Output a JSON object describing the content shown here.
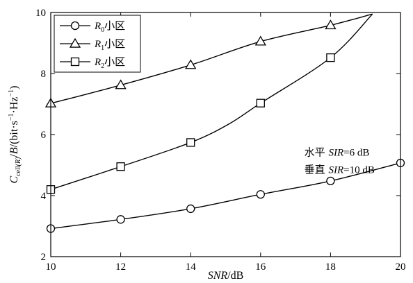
{
  "chart_data": {
    "type": "line",
    "xlabel": "SNR/dB",
    "ylabel": "C_cell(R)/B/(bit·s⁻¹·Hz⁻¹)",
    "xlim": [
      10,
      20
    ],
    "ylim": [
      2,
      10
    ],
    "xticks": [
      10,
      12,
      14,
      16,
      18,
      20
    ],
    "yticks": [
      2,
      4,
      6,
      8,
      10
    ],
    "grid": false,
    "legend_position": "top-left",
    "series": [
      {
        "name": "R0小区",
        "name_parts": {
          "base": "R",
          "sub": "0",
          "suffix": "小区"
        },
        "marker": "circle",
        "x": [
          10,
          12,
          14,
          16,
          18,
          20
        ],
        "y": [
          2.92,
          3.22,
          3.57,
          4.04,
          4.48,
          5.07
        ]
      },
      {
        "name": "R1小区",
        "name_parts": {
          "base": "R",
          "sub": "1",
          "suffix": "小区"
        },
        "marker": "triangle",
        "x": [
          10,
          12,
          14,
          16,
          18,
          19.2
        ],
        "y": [
          7.02,
          7.62,
          8.28,
          9.05,
          9.58,
          9.95
        ],
        "marker_points": 5
      },
      {
        "name": "R2小区",
        "name_parts": {
          "base": "R",
          "sub": "2",
          "suffix": "小区"
        },
        "marker": "square",
        "x": [
          10,
          12,
          14,
          15.1,
          16,
          18,
          19.2
        ],
        "y": [
          4.2,
          4.95,
          5.74,
          6.35,
          7.03,
          8.52,
          9.95
        ],
        "marker_indices": [
          0,
          1,
          2,
          4,
          5
        ]
      }
    ],
    "annotations": [
      {
        "text": "水平 SIR=6 dB",
        "prefix": "水平 ",
        "italic": "SIR",
        "suffix": "=6 dB"
      },
      {
        "text": "垂直 SIR=10 dB",
        "prefix": "垂直 ",
        "italic": "SIR",
        "suffix": "=10 dB"
      }
    ],
    "colors": {
      "line": "#000000",
      "marker_fill": "#ffffff",
      "background": "#ffffff"
    }
  }
}
